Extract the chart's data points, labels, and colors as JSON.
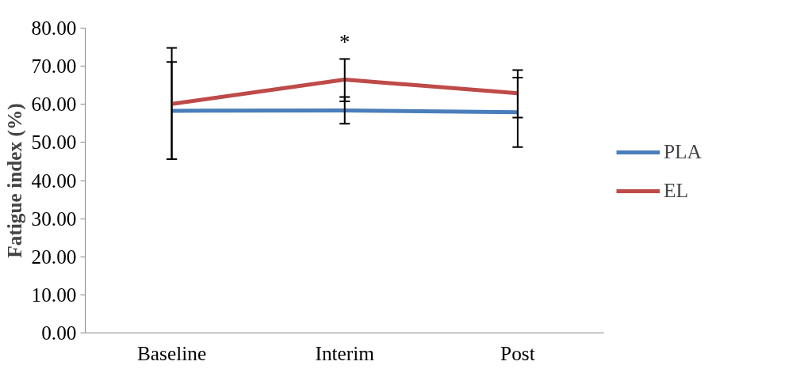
{
  "chart_data": {
    "type": "line",
    "ylabel": "Fatigue index (%)",
    "categories": [
      "Baseline",
      "Interim",
      "Post"
    ],
    "series": [
      {
        "name": "PLA",
        "color": "#4a7ebb",
        "values": [
          58.3,
          58.4,
          57.9
        ],
        "errors": [
          [
            45.6,
            71.1
          ],
          [
            54.9,
            61.9
          ],
          [
            48.8,
            67.0
          ]
        ]
      },
      {
        "name": "EL",
        "color": "#be4b48",
        "values": [
          60.1,
          66.5,
          62.9
        ],
        "errors": [
          [
            45.6,
            74.8
          ],
          [
            60.8,
            71.9
          ],
          [
            56.5,
            69.0
          ]
        ]
      }
    ],
    "ylim": [
      0,
      80
    ],
    "yticks": [
      {
        "value": 0,
        "label": "0.00"
      },
      {
        "value": 10,
        "label": "10.00"
      },
      {
        "value": 20,
        "label": "20.00"
      },
      {
        "value": 30,
        "label": "30.00"
      },
      {
        "value": 40,
        "label": "40.00"
      },
      {
        "value": 50,
        "label": "50.00"
      },
      {
        "value": 60,
        "label": "60.00"
      },
      {
        "value": 70,
        "label": "70.00"
      },
      {
        "value": 80,
        "label": "80.00"
      }
    ],
    "annotations": [
      "*"
    ],
    "legend": "right",
    "grid": false,
    "marker": "none",
    "line_style": "solid"
  }
}
